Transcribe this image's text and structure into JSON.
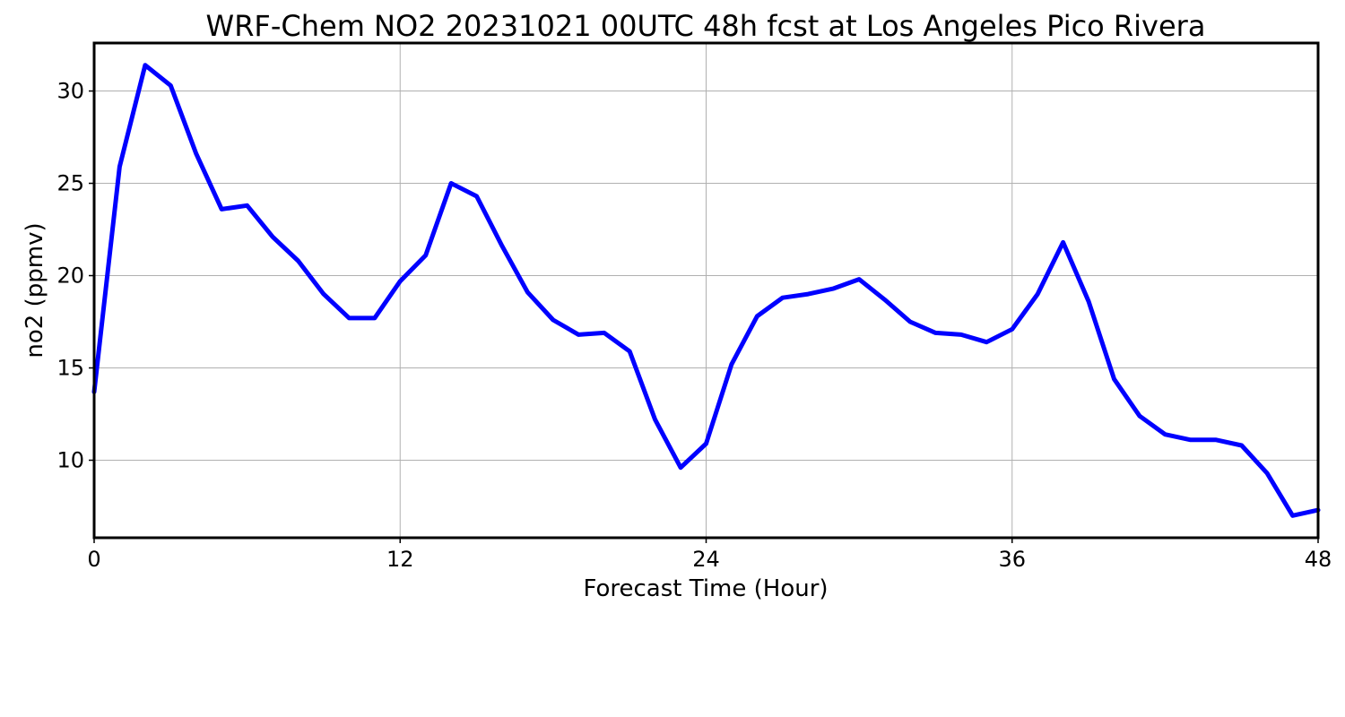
{
  "chart_data": {
    "type": "line",
    "title": "WRF-Chem NO2  20231021 00UTC 48h fcst at Los Angeles Pico Rivera",
    "xlabel": "Forecast Time (Hour)",
    "ylabel": "no2  (ppmv)",
    "xlim": [
      0,
      48
    ],
    "ylim": [
      5.8,
      32.6
    ],
    "xticks": [
      0,
      12,
      24,
      36,
      48
    ],
    "yticks": [
      10,
      15,
      20,
      25,
      30
    ],
    "grid": true,
    "series_color": "#0000ff",
    "x": [
      0,
      1,
      2,
      3,
      4,
      5,
      6,
      7,
      8,
      9,
      10,
      11,
      12,
      13,
      14,
      15,
      16,
      17,
      18,
      19,
      20,
      21,
      22,
      23,
      24,
      25,
      26,
      27,
      28,
      29,
      30,
      31,
      32,
      33,
      34,
      35,
      36,
      37,
      38,
      39,
      40,
      41,
      42,
      43,
      44,
      45,
      46,
      47,
      48
    ],
    "series": [
      {
        "values": [
          13.7,
          25.9,
          31.4,
          30.3,
          26.6,
          23.6,
          23.8,
          22.1,
          20.8,
          19.0,
          17.7,
          17.7,
          19.7,
          21.1,
          25.0,
          24.3,
          21.6,
          19.1,
          17.6,
          16.8,
          16.9,
          15.9,
          12.2,
          9.6,
          10.9,
          15.2,
          17.8,
          18.8,
          19.0,
          19.3,
          19.8,
          18.7,
          17.5,
          16.9,
          16.8,
          16.4,
          17.1,
          19.0,
          21.8,
          18.6,
          14.4,
          12.4,
          11.4,
          11.1,
          11.1,
          10.8,
          9.3,
          7.0,
          7.3
        ]
      }
    ]
  }
}
